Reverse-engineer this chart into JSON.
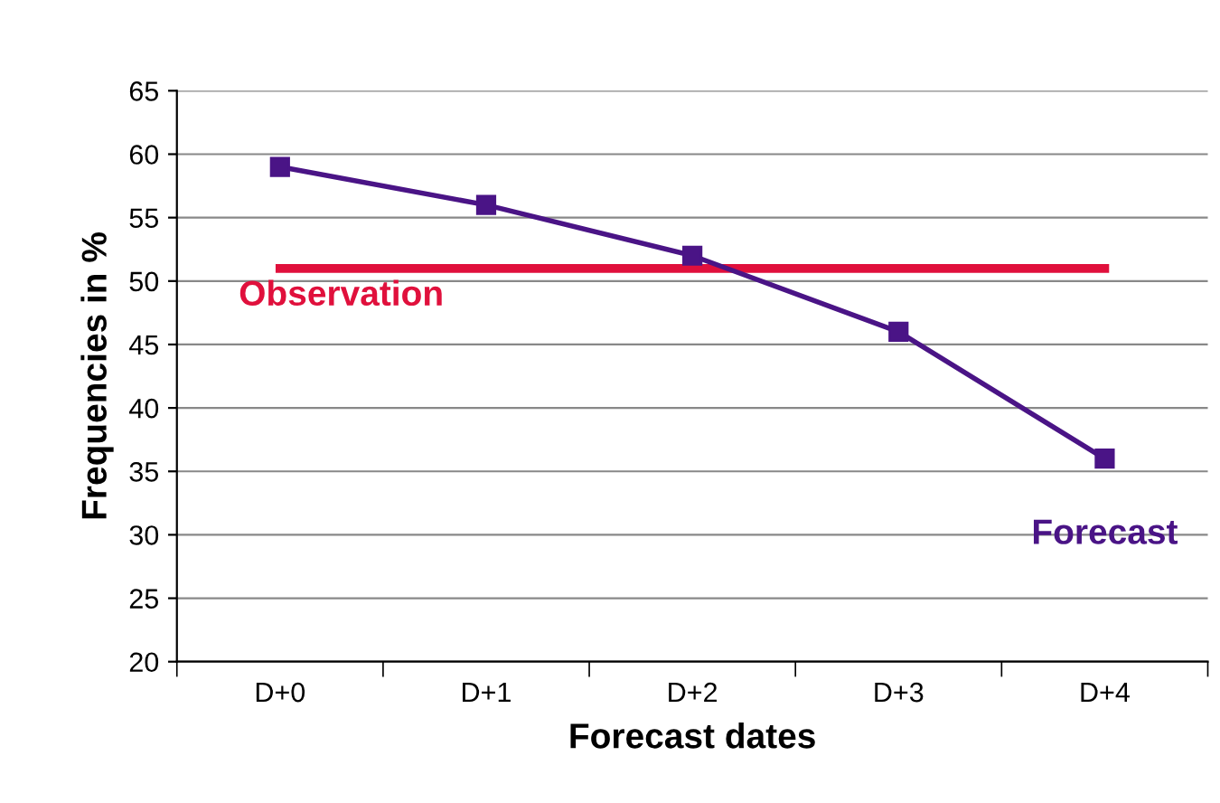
{
  "chart_data": {
    "type": "line",
    "xlabel": "Forecast dates",
    "ylabel": "Frequencies in %",
    "categories": [
      "D+0",
      "D+1",
      "D+2",
      "D+3",
      "D+4"
    ],
    "series": [
      {
        "name": "Forecast",
        "color": "#4a1486",
        "marker": "square",
        "values": [
          59,
          56,
          52,
          46,
          36
        ]
      },
      {
        "name": "Observation",
        "color": "#e0103c",
        "marker": "none",
        "values": [
          51,
          51,
          51,
          51,
          51
        ]
      }
    ],
    "ylim": [
      20,
      65
    ],
    "yticks": [
      20,
      25,
      30,
      35,
      40,
      45,
      50,
      55,
      60,
      65
    ],
    "grid": "y",
    "legend": false,
    "line_style": "solid"
  }
}
